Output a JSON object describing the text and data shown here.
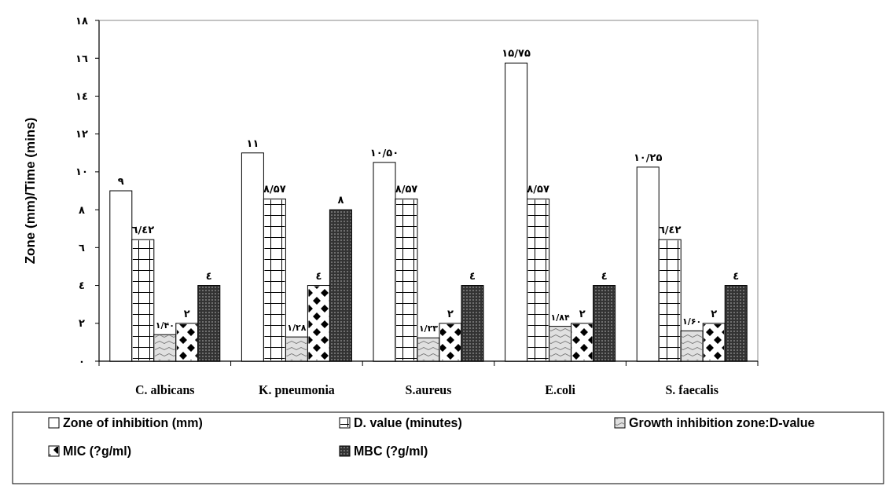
{
  "chart_data": {
    "type": "bar",
    "ylabel": "Zone (mm)/Time (mins)",
    "categories": [
      "C. albicans",
      "K. pneumonia",
      "S.aureus",
      "E.coli",
      "S. faecalis"
    ],
    "series": [
      {
        "name": "Zone of inhibition (mm)",
        "color": "#ffffff",
        "values": [
          9,
          11,
          10.5,
          15.75,
          10.25
        ],
        "value_labels": [
          "۹",
          "۱۱",
          "۱۰/۵۰",
          "۱۵/۷۵",
          "۱۰/۲۵"
        ]
      },
      {
        "name": "D. value (minutes)",
        "color": "#ffffff",
        "values": [
          6.42,
          8.57,
          8.57,
          8.57,
          6.42
        ],
        "value_labels": [
          "٦/٤٢",
          "۸/۵۷",
          "۸/۵۷",
          "۸/۵۷",
          "٦/٤٢"
        ]
      },
      {
        "name": "Growth inhibition zone:D-value",
        "color": "#e0e0e0",
        "values": [
          1.4,
          1.28,
          1.23,
          1.84,
          1.6
        ],
        "value_labels": [
          "۱/۴۰",
          "۱/۲۸",
          "۱/۲۳",
          "۱/۸۴",
          "۱/۶۰"
        ]
      },
      {
        "name": "MIC (?g/ml)",
        "color": "#ffffff",
        "values": [
          2,
          4,
          2,
          2,
          2
        ],
        "value_labels": [
          "۲",
          "٤",
          "۲",
          "۲",
          "۲"
        ]
      },
      {
        "name": "MBC (?g/ml)",
        "color": "#333333",
        "values": [
          4,
          8,
          4,
          4,
          4
        ],
        "value_labels": [
          "٤",
          "۸",
          "٤",
          "٤",
          "٤"
        ]
      }
    ],
    "ylim": [
      0,
      18
    ],
    "yticks": [
      {
        "value": 0,
        "label": "۰"
      },
      {
        "value": 2,
        "label": "۲"
      },
      {
        "value": 4,
        "label": "٤"
      },
      {
        "value": 6,
        "label": "٦"
      },
      {
        "value": 8,
        "label": "۸"
      },
      {
        "value": 10,
        "label": "۱۰"
      },
      {
        "value": 12,
        "label": "۱۲"
      },
      {
        "value": 14,
        "label": "۱٤"
      },
      {
        "value": 16,
        "label": "۱٦"
      },
      {
        "value": 18,
        "label": "۱۸"
      }
    ],
    "grid": false,
    "legend": "bottom"
  }
}
